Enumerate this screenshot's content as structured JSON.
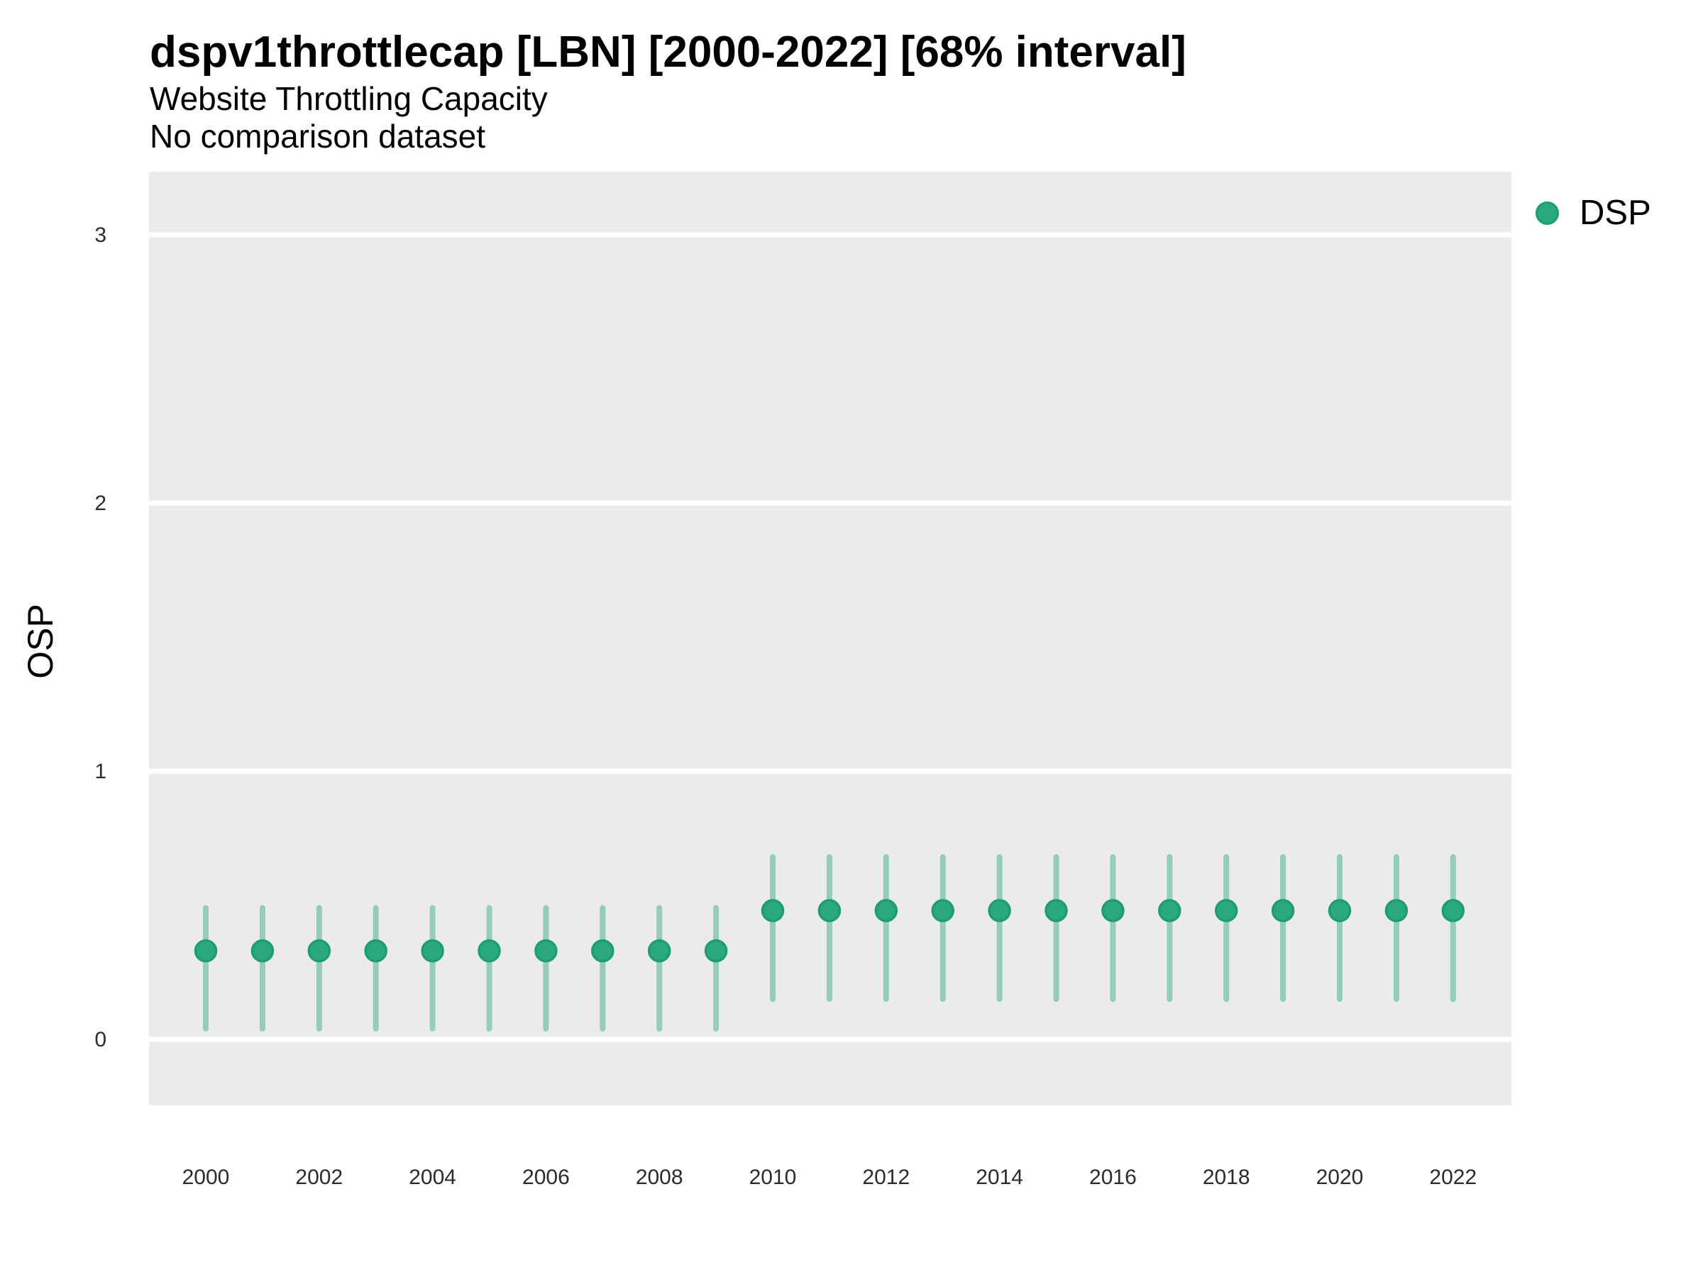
{
  "header": {
    "title": "dspv1throttlecap [LBN] [2000-2022] [68% interval]",
    "subtitle": "Website Throttling Capacity",
    "comparison_note": "No comparison dataset"
  },
  "legend": {
    "position": "right-top",
    "items": [
      {
        "label": "DSP",
        "color": "#2BA87D"
      }
    ]
  },
  "axes": {
    "y": {
      "label": "OSP",
      "ticks": [
        "0",
        "1",
        "2",
        "3"
      ]
    },
    "x": {
      "ticks": [
        "2000",
        "2002",
        "2004",
        "2006",
        "2008",
        "2010",
        "2012",
        "2014",
        "2016",
        "2018",
        "2020",
        "2022"
      ]
    }
  },
  "chart_data": {
    "type": "scatter",
    "mark": "pointrange",
    "title": "dspv1throttlecap [LBN] [2000-2022] [68% interval]",
    "subtitle": "Website Throttling Capacity",
    "note": "No comparison dataset",
    "interval": "68%",
    "xlabel": "",
    "ylabel": "OSP",
    "x_range": [
      2000,
      2022
    ],
    "y_ticks": [
      0,
      1,
      2,
      3
    ],
    "grid": "white gridlines on gray panel",
    "legend_position": "right",
    "series": [
      {
        "name": "DSP",
        "color": "#2BA87D",
        "points": [
          {
            "x": 2000,
            "y": 0.33,
            "lo": 0.04,
            "hi": 0.49
          },
          {
            "x": 2001,
            "y": 0.33,
            "lo": 0.04,
            "hi": 0.49
          },
          {
            "x": 2002,
            "y": 0.33,
            "lo": 0.04,
            "hi": 0.49
          },
          {
            "x": 2003,
            "y": 0.33,
            "lo": 0.04,
            "hi": 0.49
          },
          {
            "x": 2004,
            "y": 0.33,
            "lo": 0.04,
            "hi": 0.49
          },
          {
            "x": 2005,
            "y": 0.33,
            "lo": 0.04,
            "hi": 0.49
          },
          {
            "x": 2006,
            "y": 0.33,
            "lo": 0.04,
            "hi": 0.49
          },
          {
            "x": 2007,
            "y": 0.33,
            "lo": 0.04,
            "hi": 0.49
          },
          {
            "x": 2008,
            "y": 0.33,
            "lo": 0.04,
            "hi": 0.49
          },
          {
            "x": 2009,
            "y": 0.33,
            "lo": 0.04,
            "hi": 0.49
          },
          {
            "x": 2010,
            "y": 0.48,
            "lo": 0.15,
            "hi": 0.68
          },
          {
            "x": 2011,
            "y": 0.48,
            "lo": 0.15,
            "hi": 0.68
          },
          {
            "x": 2012,
            "y": 0.48,
            "lo": 0.15,
            "hi": 0.68
          },
          {
            "x": 2013,
            "y": 0.48,
            "lo": 0.15,
            "hi": 0.68
          },
          {
            "x": 2014,
            "y": 0.48,
            "lo": 0.15,
            "hi": 0.68
          },
          {
            "x": 2015,
            "y": 0.48,
            "lo": 0.15,
            "hi": 0.68
          },
          {
            "x": 2016,
            "y": 0.48,
            "lo": 0.15,
            "hi": 0.68
          },
          {
            "x": 2017,
            "y": 0.48,
            "lo": 0.15,
            "hi": 0.68
          },
          {
            "x": 2018,
            "y": 0.48,
            "lo": 0.15,
            "hi": 0.68
          },
          {
            "x": 2019,
            "y": 0.48,
            "lo": 0.15,
            "hi": 0.68
          },
          {
            "x": 2020,
            "y": 0.48,
            "lo": 0.15,
            "hi": 0.68
          },
          {
            "x": 2021,
            "y": 0.48,
            "lo": 0.15,
            "hi": 0.68
          },
          {
            "x": 2022,
            "y": 0.48,
            "lo": 0.15,
            "hi": 0.68
          }
        ]
      }
    ]
  },
  "style": {
    "accent": "#2BA87D",
    "accent_dark": "#1E9C72",
    "errorbar_opacity": 0.45,
    "panel_bg": "#EBEBEB",
    "grid_color": "#FFFFFF",
    "text_color": "#000000",
    "tick_text_color": "#2B2B2B"
  }
}
